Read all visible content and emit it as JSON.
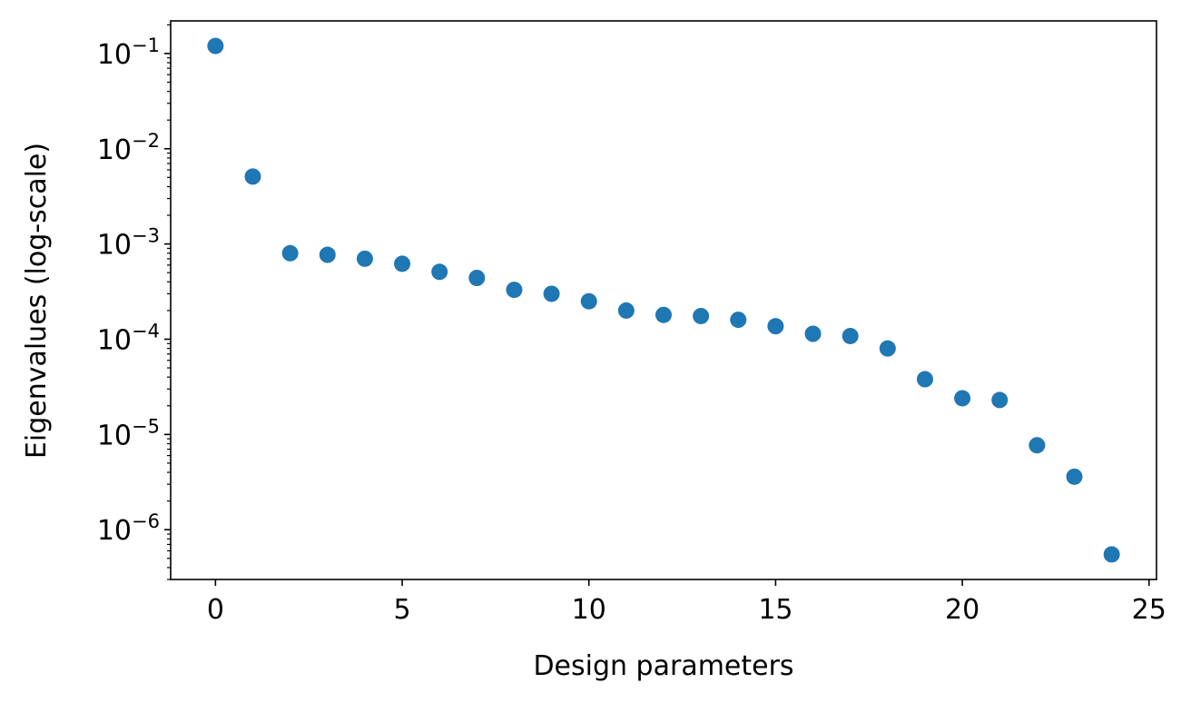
{
  "chart_data": {
    "type": "scatter",
    "xlabel": "Design parameters",
    "ylabel": "Eigenvalues (log-scale)",
    "yscale": "log",
    "xlim": [
      -1.2,
      25.2
    ],
    "ylim": [
      3e-07,
      0.22
    ],
    "grid": false,
    "marker_color": "#1f77b4",
    "x_ticks": [
      0,
      5,
      10,
      15,
      20,
      25
    ],
    "x_tick_labels": [
      "0",
      "5",
      "10",
      "15",
      "20",
      "25"
    ],
    "y_ticks": [
      {
        "value": 0.1,
        "base": "10",
        "exp": "−1"
      },
      {
        "value": 0.01,
        "base": "10",
        "exp": "−2"
      },
      {
        "value": 0.001,
        "base": "10",
        "exp": "−3"
      },
      {
        "value": 0.0001,
        "base": "10",
        "exp": "−4"
      },
      {
        "value": 1e-05,
        "base": "10",
        "exp": "−5"
      },
      {
        "value": 1e-06,
        "base": "10",
        "exp": "−6"
      }
    ],
    "x": [
      0,
      1,
      2,
      3,
      4,
      5,
      6,
      7,
      8,
      9,
      10,
      11,
      12,
      13,
      14,
      15,
      16,
      17,
      18,
      19,
      20,
      21,
      22,
      23,
      24
    ],
    "y": [
      0.12,
      0.0051,
      0.0008,
      0.00077,
      0.0007,
      0.00062,
      0.00051,
      0.00044,
      0.00033,
      0.0003,
      0.00025,
      0.0002,
      0.00018,
      0.000175,
      0.00016,
      0.000137,
      0.000114,
      0.000108,
      8e-05,
      3.8e-05,
      2.4e-05,
      2.3e-05,
      7.7e-06,
      3.6e-06,
      5.5e-07
    ]
  }
}
